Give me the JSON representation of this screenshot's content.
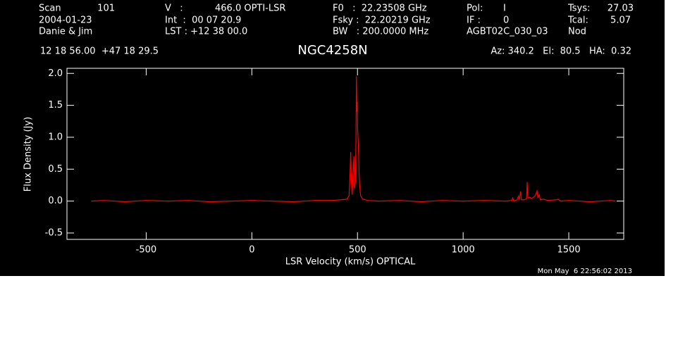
{
  "header": [
    "Scan",
    "101",
    "2004-01-23",
    "Danie & Jim",
    "V   :",
    "466.0 OPTI-LSR",
    "Int  :  00 07 20.9",
    "LST : +12 38 00.0",
    "F0   :  22.23508 GHz",
    "Fsky :  22.20219 GHz",
    "BW   : 200.0000 MHz",
    "Pol:",
    "I",
    "IF :",
    "0",
    "AGBT02C_030_03",
    "Tsys:",
    "27.03",
    "Tcal:",
    "5.07",
    "Nod",
    "12 18 56.00  +47 18 29.5",
    "Az: 340.2   El:  80.5   HA:  0.32"
  ],
  "footer": "Mon May  6 22:56:02 2013",
  "chart_data": {
    "type": "line",
    "title": "NGC4258N",
    "x_label": "LSR Velocity (km/s) OPTICAL",
    "y_label": "Flux Density (Jy)",
    "x": [
      -760,
      -700,
      -600,
      -500,
      -400,
      -300,
      -200,
      -100,
      0,
      100,
      200,
      300,
      380,
      420,
      450,
      460,
      465,
      468,
      471,
      475,
      480,
      483,
      486,
      490,
      493,
      495,
      497,
      499,
      501,
      504,
      507,
      510,
      515,
      525,
      550,
      600,
      700,
      800,
      900,
      1000,
      1100,
      1200,
      1230,
      1235,
      1240,
      1255,
      1262,
      1266,
      1272,
      1276,
      1290,
      1300,
      1303,
      1306,
      1315,
      1325,
      1340,
      1350,
      1354,
      1360,
      1365,
      1380,
      1400,
      1440,
      1450,
      1460,
      1500,
      1600,
      1700,
      1720
    ],
    "series": [
      {
        "color": "#ff0000",
        "values": [
          0,
          0.01,
          -0.01,
          0.01,
          0,
          0.01,
          -0.01,
          0,
          0.01,
          0,
          -0.01,
          0.01,
          0.01,
          0.02,
          0.03,
          0.08,
          0.45,
          0.77,
          0.3,
          0.1,
          0.5,
          0.7,
          0.2,
          0.3,
          1.0,
          1.95,
          1.4,
          1.55,
          1.1,
          0.9,
          0.5,
          0.25,
          0.08,
          0.03,
          0.01,
          0,
          0.01,
          -0.01,
          0.01,
          0,
          0.01,
          0,
          0.01,
          0.05,
          0,
          0.02,
          0.08,
          0.03,
          0.15,
          0.02,
          0.02,
          0.04,
          0.3,
          0.05,
          0.06,
          0.04,
          0.08,
          0.16,
          0.05,
          0.1,
          0.02,
          0.03,
          0.01,
          0.02,
          0.03,
          0,
          0.01,
          -0.01,
          0.01,
          0
        ]
      }
    ],
    "xlim": [
      -875,
      1760
    ],
    "ylim": [
      -0.6,
      2.08
    ],
    "xticks": [
      -500,
      0,
      500,
      1000,
      1500
    ],
    "yticks": [
      -0.5,
      {
        "value": 0,
        "label": "0.0"
      },
      0.5,
      {
        "value": 1,
        "label": "1.0"
      },
      1.5,
      {
        "value": 2,
        "label": "2.0"
      }
    ]
  }
}
